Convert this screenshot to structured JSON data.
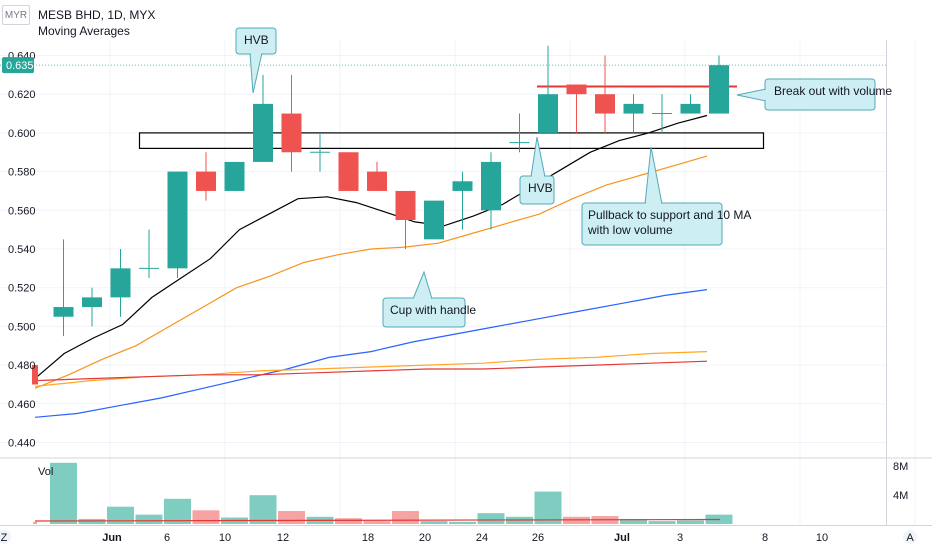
{
  "header": {
    "currency": "MYR",
    "symbol_title": "MESB BHD, 1D, MYX",
    "indicator_title": "Moving Averages"
  },
  "volume_panel": {
    "label": "Vol",
    "scale_labels": [
      "8M",
      "4M"
    ]
  },
  "bottom_axis": {
    "left_icon_label": "Z",
    "right_icon_label": "A",
    "ticks": [
      "Jun",
      "6",
      "10",
      "12",
      "18",
      "20",
      "24",
      "26",
      "Jul",
      "3",
      "8",
      "10"
    ]
  },
  "colors": {
    "up": "#26a69a",
    "down": "#ef5350",
    "vol_up": "#7fccc1",
    "vol_down": "#f5a3a3",
    "ma_black": "#000000",
    "ma_orange": "#f7941d",
    "ma_blue": "#2962ff",
    "ma_yellow": "#ffa726",
    "ma_red": "#e53935",
    "callout_bg": "#cdeef3",
    "callout_border": "#52aab8",
    "price_tag": "#26a69a"
  },
  "chart_data": {
    "type": "candlestick",
    "ylim": [
      0.44,
      0.645
    ],
    "y_ticks": [
      "0.640",
      "0.620",
      "0.600",
      "0.580",
      "0.560",
      "0.540",
      "0.520",
      "0.500",
      "0.480",
      "0.460",
      "0.440"
    ],
    "last_price": "0.635",
    "candles": [
      {
        "o": 0.48,
        "h": 0.48,
        "l": 0.47,
        "c": 0.47
      },
      {
        "o": 0.505,
        "h": 0.545,
        "l": 0.495,
        "c": 0.51
      },
      {
        "o": 0.51,
        "h": 0.52,
        "l": 0.5,
        "c": 0.515
      },
      {
        "o": 0.515,
        "h": 0.54,
        "l": 0.505,
        "c": 0.53
      },
      {
        "o": 0.53,
        "h": 0.55,
        "l": 0.525,
        "c": 0.53
      },
      {
        "o": 0.53,
        "h": 0.58,
        "l": 0.525,
        "c": 0.58
      },
      {
        "o": 0.58,
        "h": 0.59,
        "l": 0.565,
        "c": 0.57
      },
      {
        "o": 0.57,
        "h": 0.585,
        "l": 0.57,
        "c": 0.585
      },
      {
        "o": 0.585,
        "h": 0.63,
        "l": 0.585,
        "c": 0.615
      },
      {
        "o": 0.61,
        "h": 0.63,
        "l": 0.58,
        "c": 0.59
      },
      {
        "o": 0.59,
        "h": 0.6,
        "l": 0.58,
        "c": 0.59
      },
      {
        "o": 0.59,
        "h": 0.59,
        "l": 0.57,
        "c": 0.57
      },
      {
        "o": 0.58,
        "h": 0.585,
        "l": 0.57,
        "c": 0.57
      },
      {
        "o": 0.57,
        "h": 0.57,
        "l": 0.54,
        "c": 0.555
      },
      {
        "o": 0.545,
        "h": 0.565,
        "l": 0.545,
        "c": 0.565
      },
      {
        "o": 0.57,
        "h": 0.58,
        "l": 0.55,
        "c": 0.575
      },
      {
        "o": 0.56,
        "h": 0.59,
        "l": 0.55,
        "c": 0.585
      },
      {
        "o": 0.595,
        "h": 0.61,
        "l": 0.59,
        "c": 0.595
      },
      {
        "o": 0.6,
        "h": 0.645,
        "l": 0.6,
        "c": 0.62
      },
      {
        "o": 0.625,
        "h": 0.625,
        "l": 0.6,
        "c": 0.62
      },
      {
        "o": 0.62,
        "h": 0.64,
        "l": 0.6,
        "c": 0.61
      },
      {
        "o": 0.61,
        "h": 0.62,
        "l": 0.6,
        "c": 0.615
      },
      {
        "o": 0.61,
        "h": 0.62,
        "l": 0.6,
        "c": 0.61
      },
      {
        "o": 0.61,
        "h": 0.62,
        "l": 0.61,
        "c": 0.615
      },
      {
        "o": 0.61,
        "h": 0.64,
        "l": 0.61,
        "c": 0.635
      }
    ],
    "volume": [
      0.3,
      8.5,
      0.7,
      2.4,
      1.3,
      3.5,
      1.9,
      0.9,
      4.0,
      1.8,
      1.0,
      0.8,
      0.4,
      1.8,
      0.4,
      0.3,
      1.5,
      1.0,
      4.5,
      1.0,
      1.1,
      0.7,
      0.4,
      0.5,
      1.3
    ],
    "ma": [
      {
        "color": "black",
        "values": [
          0.473,
          0.486,
          0.494,
          0.501,
          0.515,
          0.525,
          0.535,
          0.55,
          0.558,
          0.566,
          0.567,
          0.564,
          0.559,
          0.554,
          0.552,
          0.557,
          0.563,
          0.572,
          0.581,
          0.59,
          0.596,
          0.6,
          0.605,
          0.609
        ]
      },
      {
        "color": "orange",
        "values": [
          0.468,
          0.475,
          0.483,
          0.49,
          0.5,
          0.51,
          0.52,
          0.526,
          0.533,
          0.537,
          0.54,
          0.541,
          0.543,
          0.548,
          0.553,
          0.558,
          0.566,
          0.573,
          0.578,
          0.583,
          0.588
        ]
      },
      {
        "color": "blue",
        "values": [
          0.453,
          0.455,
          0.459,
          0.463,
          0.468,
          0.473,
          0.478,
          0.484,
          0.487,
          0.492,
          0.496,
          0.5,
          0.504,
          0.508,
          0.512,
          0.516,
          0.519
        ]
      },
      {
        "color": "yellow",
        "values": [
          0.469,
          0.472,
          0.474,
          0.475,
          0.477,
          0.478,
          0.479,
          0.48,
          0.481,
          0.483,
          0.484,
          0.486,
          0.487
        ]
      },
      {
        "color": "red",
        "values": [
          0.472,
          0.473,
          0.474,
          0.475,
          0.475,
          0.476,
          0.477,
          0.478,
          0.478,
          0.479,
          0.48,
          0.481,
          0.482
        ]
      }
    ],
    "annotations": {
      "hvb_top": "HVB",
      "hvb_bottom": "HVB",
      "breakout": "Break out with volume",
      "pullback_line1": "Pullback to support and 10 MA",
      "pullback_line2": "with low volume",
      "cup": "Cup with handle"
    }
  }
}
